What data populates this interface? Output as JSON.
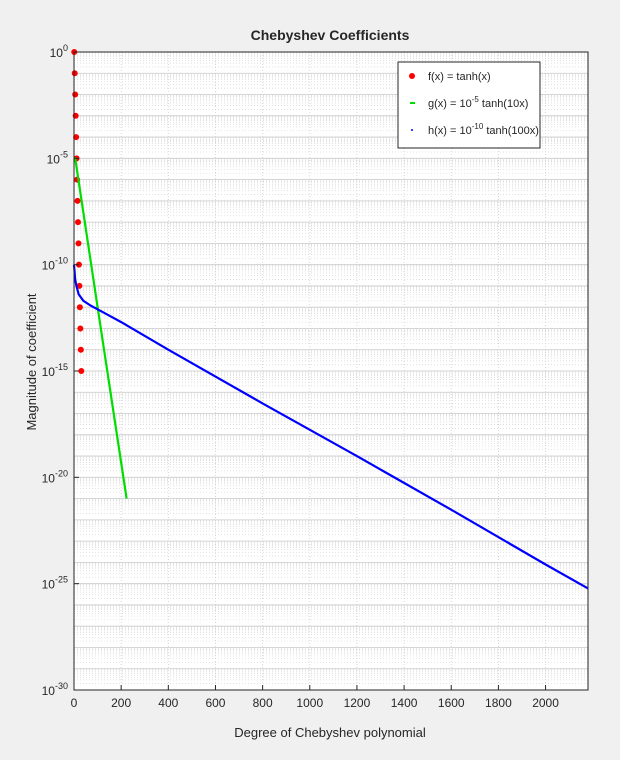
{
  "chart_data": {
    "type": "scatter",
    "title": "Chebyshev Coefficients",
    "xlabel": "Degree of Chebyshev polynomial",
    "ylabel": "Magnitude of coefficient",
    "xlim": [
      0,
      2180
    ],
    "ylim": [
      1e-30,
      1
    ],
    "y_scale": "log",
    "grid": true,
    "minor_grid": true,
    "legend_position": "top-right",
    "x_ticks": [
      0,
      200,
      400,
      600,
      800,
      1000,
      1200,
      1400,
      1600,
      1800,
      2000
    ],
    "y_ticks": [
      {
        "value": 1.0,
        "base": "10",
        "exp": "0"
      },
      {
        "value": 1e-05,
        "base": "10",
        "exp": "-5"
      },
      {
        "value": 1e-10,
        "base": "10",
        "exp": "-10"
      },
      {
        "value": 1e-15,
        "base": "10",
        "exp": "-15"
      },
      {
        "value": 1e-20,
        "base": "10",
        "exp": "-20"
      },
      {
        "value": 1e-25,
        "base": "10",
        "exp": "-25"
      },
      {
        "value": 1e-30,
        "base": "10",
        "exp": "-30"
      }
    ],
    "series": [
      {
        "name": "f(x) = tanh(x)",
        "legend": {
          "pre": "f(x) = tanh(x)",
          "exp": "",
          "post": ""
        },
        "color": "#ff0000",
        "marker": "dot",
        "x": [
          1,
          3,
          5,
          7,
          9,
          11,
          13,
          15,
          17,
          19,
          21,
          23,
          25,
          27,
          29,
          31
        ],
        "y": [
          1.0,
          0.1,
          0.01,
          0.001,
          0.0001,
          1e-05,
          1e-06,
          1e-07,
          1e-08,
          1e-09,
          1e-10,
          1e-11,
          1e-12,
          1e-13,
          1e-14,
          1e-15
        ]
      },
      {
        "name": "g(x) = 10^-5 tanh(10x)",
        "legend": {
          "pre": "g(x) = 10",
          "exp": "-5",
          "post": " tanh(10x)"
        },
        "color": "#00dd00",
        "marker": "line",
        "x": [
          0,
          5,
          100,
          223
        ],
        "y": [
          1e-05,
          1e-05,
          1e-12,
          1e-21
        ]
      },
      {
        "name": "h(x) = 10^-10 tanh(100x)",
        "legend": {
          "pre": "h(x) = 10",
          "exp": "-10",
          "post": " tanh(100x)"
        },
        "color": "#0000ff",
        "marker": "line",
        "x": [
          0,
          5,
          10,
          20,
          40,
          70,
          100,
          150,
          200,
          400,
          800,
          1200,
          1600,
          2000,
          2180
        ],
        "y": [
          1e-10,
          2e-11,
          1e-11,
          4e-12,
          2e-12,
          1.2e-12,
          8e-13,
          4e-13,
          2e-13,
          1e-14,
          3e-17,
          1e-19,
          3e-22,
          8e-25,
          6e-26
        ]
      }
    ]
  }
}
